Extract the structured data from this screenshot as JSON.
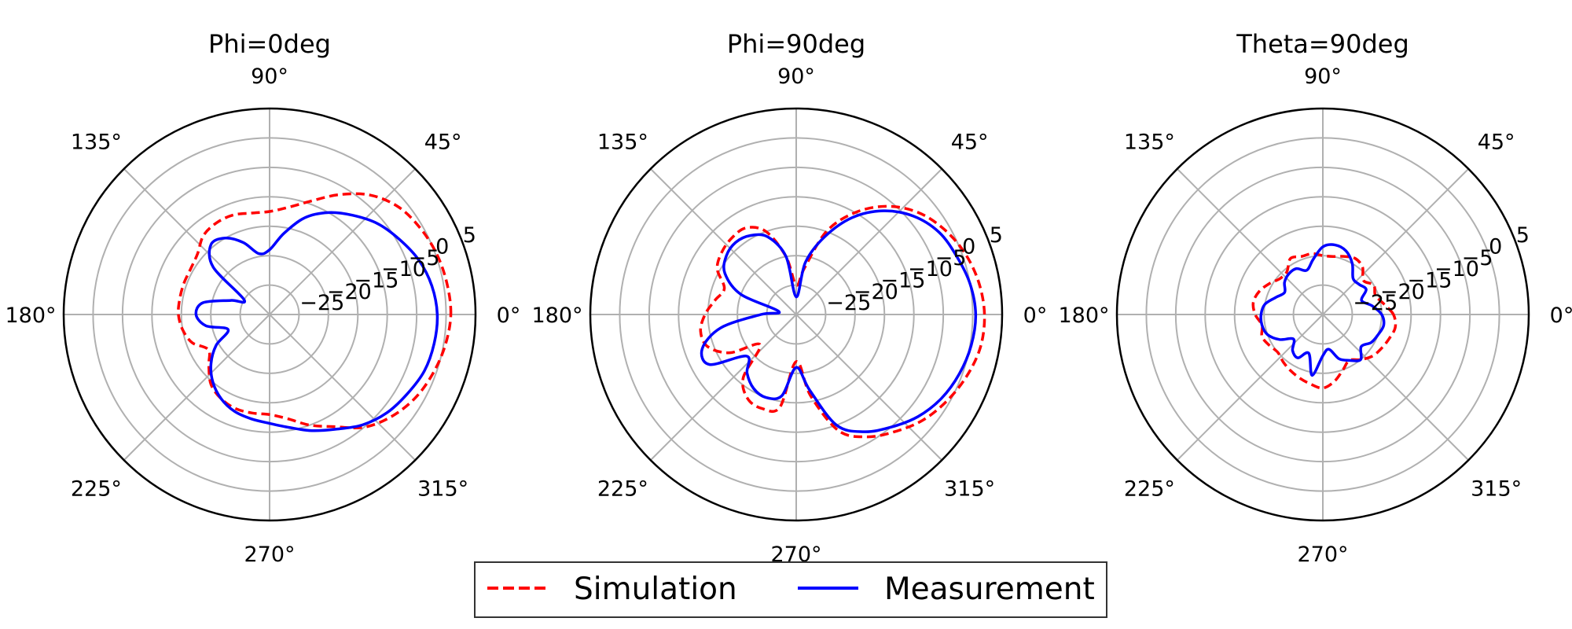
{
  "chart_data": [
    {
      "type": "line",
      "polar": true,
      "title": "Phi=0deg",
      "theta_tick_labels": [
        "0°",
        "45°",
        "90°",
        "135°",
        "180°",
        "225°",
        "270°",
        "315°"
      ],
      "r_ticks": [
        -25,
        -20,
        -15,
        -10,
        -5,
        0,
        5
      ],
      "r_tick_labels": [
        "−25",
        "−20",
        "−15",
        "−10",
        "−5",
        "0",
        "5"
      ],
      "rlim": [
        -30,
        5
      ],
      "grid": true,
      "series": [
        {
          "name": "Simulation",
          "color": "#ff0000",
          "dash": "dashed",
          "theta": [
            0,
            10,
            20,
            30,
            40,
            50,
            60,
            70,
            80,
            90,
            100,
            110,
            120,
            130,
            140,
            150,
            160,
            170,
            180,
            190,
            200,
            210,
            220,
            230,
            240,
            250,
            260,
            270,
            280,
            290,
            300,
            310,
            320,
            330,
            340,
            350
          ],
          "r": [
            0.8,
            0.6,
            0.2,
            -0.5,
            -1.5,
            -3.5,
            -6.5,
            -9.5,
            -11.5,
            -12.5,
            -12.5,
            -12,
            -12,
            -12.5,
            -14,
            -14.5,
            -14.5,
            -14.5,
            -14.5,
            -15,
            -16,
            -18,
            -16.5,
            -14.5,
            -13.5,
            -13,
            -13,
            -13,
            -12,
            -10,
            -8,
            -5,
            -3,
            -1.5,
            -0.5,
            0.3
          ]
        },
        {
          "name": "Measurement",
          "color": "#0000ff",
          "dash": "solid",
          "theta": [
            0,
            10,
            20,
            30,
            40,
            50,
            60,
            70,
            80,
            90,
            100,
            110,
            120,
            130,
            140,
            150,
            160,
            170,
            180,
            190,
            200,
            210,
            220,
            230,
            240,
            250,
            260,
            270,
            280,
            290,
            300,
            310,
            320,
            330,
            340,
            350
          ],
          "r": [
            -1.5,
            -2,
            -3,
            -4.5,
            -6,
            -8,
            -10,
            -12.5,
            -16,
            -19,
            -19.5,
            -17,
            -15,
            -14.5,
            -17.5,
            -25,
            -23,
            -18.5,
            -17.5,
            -19,
            -22.5,
            -19.5,
            -17,
            -15,
            -13.5,
            -12.5,
            -12,
            -11.5,
            -10.5,
            -9,
            -7.5,
            -5.5,
            -4,
            -3,
            -2,
            -1.6
          ]
        }
      ]
    },
    {
      "type": "line",
      "polar": true,
      "title": "Phi=90deg",
      "theta_tick_labels": [
        "0°",
        "45°",
        "90°",
        "135°",
        "180°",
        "225°",
        "270°",
        "315°"
      ],
      "r_ticks": [
        -25,
        -20,
        -15,
        -10,
        -5,
        0,
        5
      ],
      "r_tick_labels": [
        "−25",
        "−20",
        "−15",
        "−10",
        "−5",
        "0",
        "5"
      ],
      "rlim": [
        -30,
        5
      ],
      "grid": true,
      "series": [
        {
          "name": "Simulation",
          "color": "#ff0000",
          "dash": "dashed",
          "theta": [
            0,
            10,
            20,
            30,
            40,
            50,
            60,
            70,
            80,
            90,
            100,
            110,
            120,
            130,
            140,
            150,
            160,
            170,
            180,
            190,
            200,
            210,
            220,
            230,
            240,
            250,
            260,
            270,
            280,
            290,
            300,
            310,
            320,
            330,
            340,
            350
          ],
          "r": [
            2,
            1.5,
            0.5,
            -1,
            -3,
            -6,
            -10,
            -15,
            -22,
            -25,
            -20,
            -15,
            -13,
            -13,
            -13.5,
            -14.5,
            -17,
            -16,
            -14.5,
            -13.5,
            -14,
            -17,
            -22,
            -16,
            -13.5,
            -13,
            -14,
            -22,
            -16,
            -9,
            -6,
            -4,
            -2,
            -0.5,
            0.8,
            1.8
          ]
        },
        {
          "name": "Measurement",
          "color": "#0000ff",
          "dash": "solid",
          "theta": [
            0,
            10,
            20,
            30,
            40,
            50,
            60,
            70,
            80,
            90,
            100,
            110,
            120,
            130,
            140,
            150,
            160,
            170,
            180,
            190,
            200,
            210,
            220,
            230,
            240,
            250,
            260,
            270,
            280,
            290,
            300,
            310,
            320,
            330,
            340,
            350
          ],
          "r": [
            0.5,
            0,
            -1,
            -2,
            -4,
            -7,
            -11,
            -16,
            -21,
            -27,
            -20,
            -16,
            -14.5,
            -14,
            -14.5,
            -16,
            -20,
            -27,
            -24,
            -17,
            -13,
            -13,
            -19,
            -17,
            -15.5,
            -15,
            -16,
            -21,
            -17,
            -10,
            -7,
            -5,
            -3,
            -1.5,
            -0.5,
            0.2
          ]
        }
      ]
    },
    {
      "type": "line",
      "polar": true,
      "title": "Theta=90deg",
      "theta_tick_labels": [
        "0°",
        "45°",
        "90°",
        "135°",
        "180°",
        "225°",
        "270°",
        "315°"
      ],
      "r_ticks": [
        -25,
        -20,
        -15,
        -10,
        -5,
        0,
        5
      ],
      "r_tick_labels": [
        "−25",
        "−20",
        "−15",
        "−10",
        "−5",
        "0",
        "5"
      ],
      "rlim": [
        -30,
        5
      ],
      "grid": true,
      "series": [
        {
          "name": "Simulation",
          "color": "#ff0000",
          "dash": "dashed",
          "theta": [
            0,
            10,
            20,
            30,
            40,
            50,
            60,
            70,
            80,
            90,
            100,
            110,
            120,
            130,
            140,
            150,
            160,
            170,
            180,
            190,
            200,
            210,
            220,
            230,
            240,
            250,
            260,
            270,
            280,
            290,
            300,
            310,
            320,
            330,
            340,
            350
          ],
          "r": [
            -18,
            -19.5,
            -20.5,
            -20,
            -21,
            -19.5,
            -19,
            -19.5,
            -20,
            -20,
            -19.5,
            -19.5,
            -19,
            -20.5,
            -20.5,
            -19.5,
            -18.5,
            -18,
            -18.5,
            -19.5,
            -19,
            -19.5,
            -20,
            -19.5,
            -19,
            -18.5,
            -18,
            -17.5,
            -18.5,
            -20,
            -21,
            -20,
            -19,
            -18.5,
            -18,
            -17.5
          ]
        },
        {
          "name": "Measurement",
          "color": "#0000ff",
          "dash": "solid",
          "theta": [
            0,
            10,
            20,
            30,
            40,
            50,
            60,
            70,
            80,
            90,
            100,
            110,
            120,
            130,
            140,
            150,
            160,
            170,
            180,
            190,
            200,
            210,
            220,
            230,
            240,
            250,
            260,
            270,
            280,
            290,
            300,
            310,
            320,
            330,
            340,
            350
          ],
          "r": [
            -20,
            -21.5,
            -23,
            -21.5,
            -22,
            -22,
            -20,
            -18.5,
            -18,
            -18.5,
            -20.5,
            -22,
            -21,
            -21,
            -21.5,
            -22.5,
            -21.5,
            -20,
            -19.5,
            -19.5,
            -20,
            -21.5,
            -23.5,
            -22,
            -21.5,
            -23,
            -19.5,
            -23,
            -24,
            -22,
            -21,
            -20,
            -21.5,
            -20.5,
            -20,
            -19.5
          ]
        }
      ]
    }
  ],
  "legend": {
    "placement": "bottom-center",
    "entries": [
      {
        "label": "Simulation",
        "color": "#ff0000",
        "dash": "dashed"
      },
      {
        "label": "Measurement",
        "color": "#0000ff",
        "dash": "solid"
      }
    ]
  }
}
